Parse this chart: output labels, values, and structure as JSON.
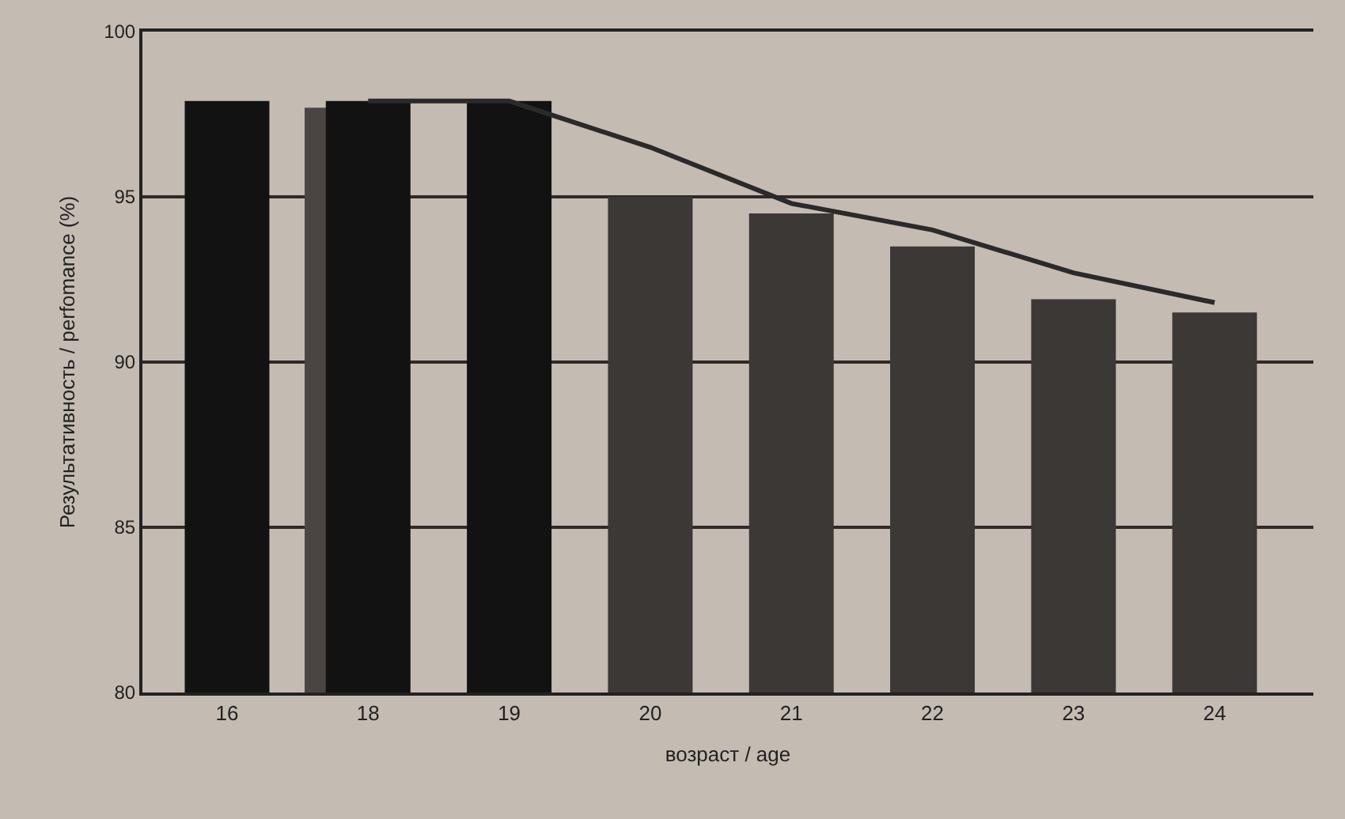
{
  "chart_data": {
    "type": "bar",
    "xlabel": "возраст / age",
    "ylabel": "Результативность / perfomance (%)",
    "categories": [
      "16",
      "18",
      "19",
      "20",
      "21",
      "22",
      "23",
      "24"
    ],
    "series": [
      {
        "color": "#4a4542",
        "values": [
          null,
          97.7,
          null,
          null,
          null,
          null,
          null,
          null
        ]
      },
      {
        "colors": [
          "#121212",
          "#121212",
          "#121212",
          "#3b3836",
          "#3b3836",
          "#3b3836",
          "#3b3836",
          "#3b3836"
        ],
        "values": [
          97.9,
          97.9,
          97.9,
          95.0,
          94.5,
          93.5,
          91.9,
          91.5
        ]
      },
      {
        "type": "line",
        "color": "#2a2a2a",
        "values": [
          null,
          97.9,
          97.9,
          96.5,
          94.8,
          94.0,
          92.7,
          91.8
        ]
      }
    ],
    "ylim": [
      80,
      100
    ],
    "yticks": [
      80,
      85,
      90,
      95,
      100
    ],
    "grid": "y",
    "marker": "none"
  }
}
